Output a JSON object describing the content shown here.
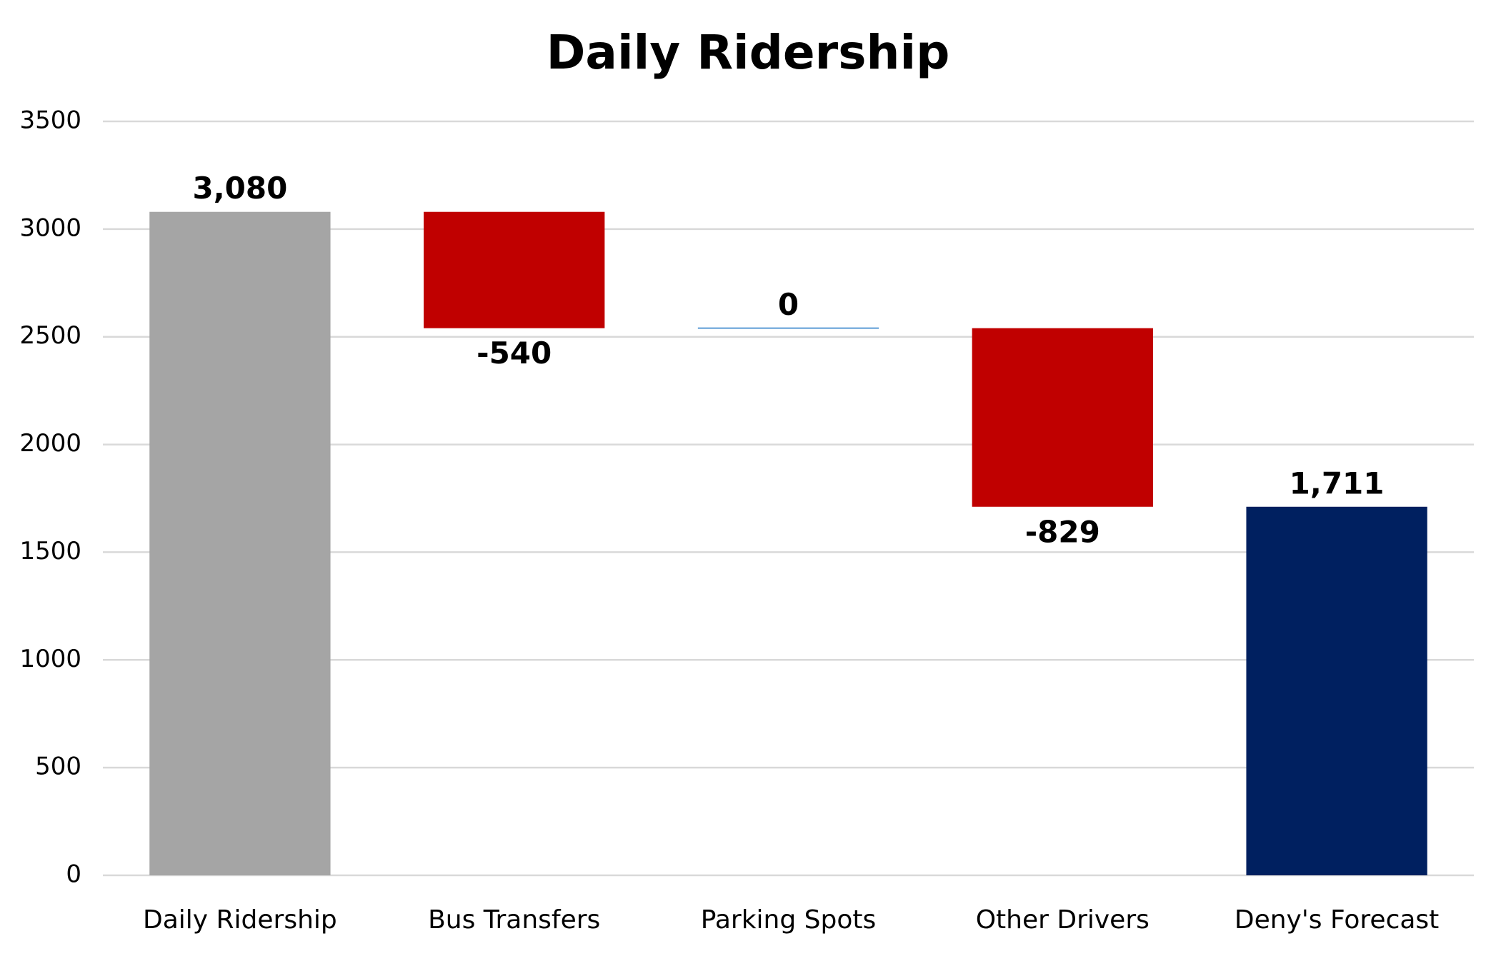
{
  "chart_data": {
    "type": "waterfall",
    "title": "Daily Ridership",
    "categories": [
      "Daily Ridership",
      "Bus Transfers",
      "Parking Spots",
      "Other Drivers",
      "Deny's Forecast"
    ],
    "values": [
      3080,
      -540,
      0,
      -829,
      1711
    ],
    "value_labels": [
      "3,080",
      "-540",
      "0",
      "-829",
      "1,711"
    ],
    "measure": [
      "absolute",
      "relative",
      "relative",
      "relative",
      "total"
    ],
    "colors": [
      "#a5a5a5",
      "#c00000",
      "#5b9bd5",
      "#c00000",
      "#002060"
    ],
    "ylim": [
      0,
      3500
    ],
    "yticks": [
      0,
      500,
      1000,
      1500,
      2000,
      2500,
      3000,
      3500
    ],
    "grid": true
  }
}
